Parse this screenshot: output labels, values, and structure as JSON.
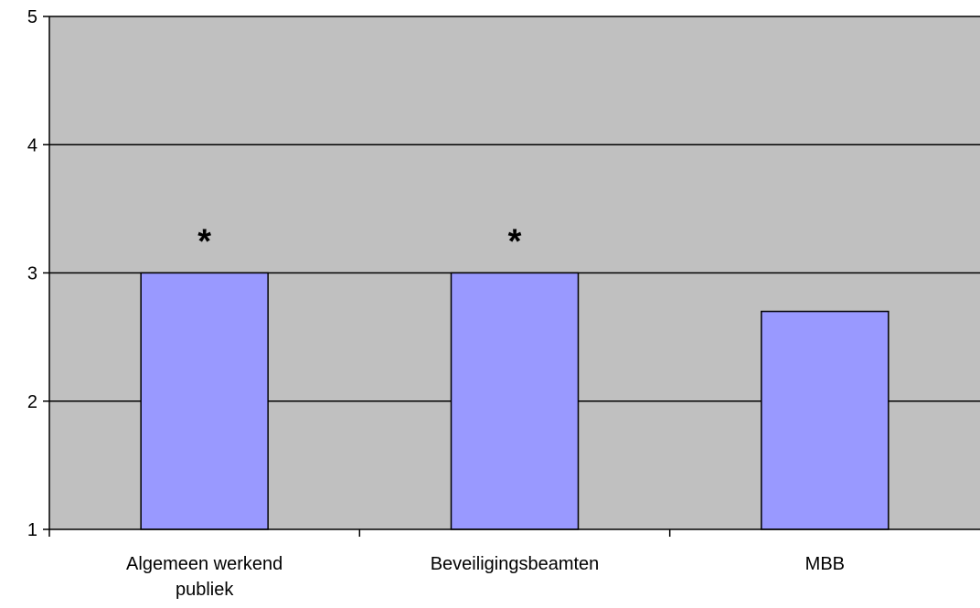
{
  "chart_data": {
    "type": "bar",
    "categories": [
      "Algemeen werkend publiek",
      "Beveiligingsbeamten",
      "MBB"
    ],
    "category_label_lines": [
      [
        "Algemeen werkend",
        "publiek"
      ],
      [
        "Beveiligingsbeamten"
      ],
      [
        "MBB"
      ]
    ],
    "values": [
      3.0,
      3.0,
      2.7
    ],
    "annotations": [
      "*",
      "*",
      ""
    ],
    "title": "",
    "xlabel": "",
    "ylabel": "",
    "ylim": [
      1,
      5
    ],
    "yticks": [
      1,
      2,
      3,
      4,
      5
    ],
    "ytick_labels": [
      "1",
      "2",
      "3",
      "4",
      "5"
    ],
    "grid": true,
    "legend": "none",
    "colors": {
      "plot_background": "#c0c0c0",
      "bar_fill": "#9999ff",
      "bar_stroke": "#000000",
      "gridline": "#000000"
    }
  }
}
